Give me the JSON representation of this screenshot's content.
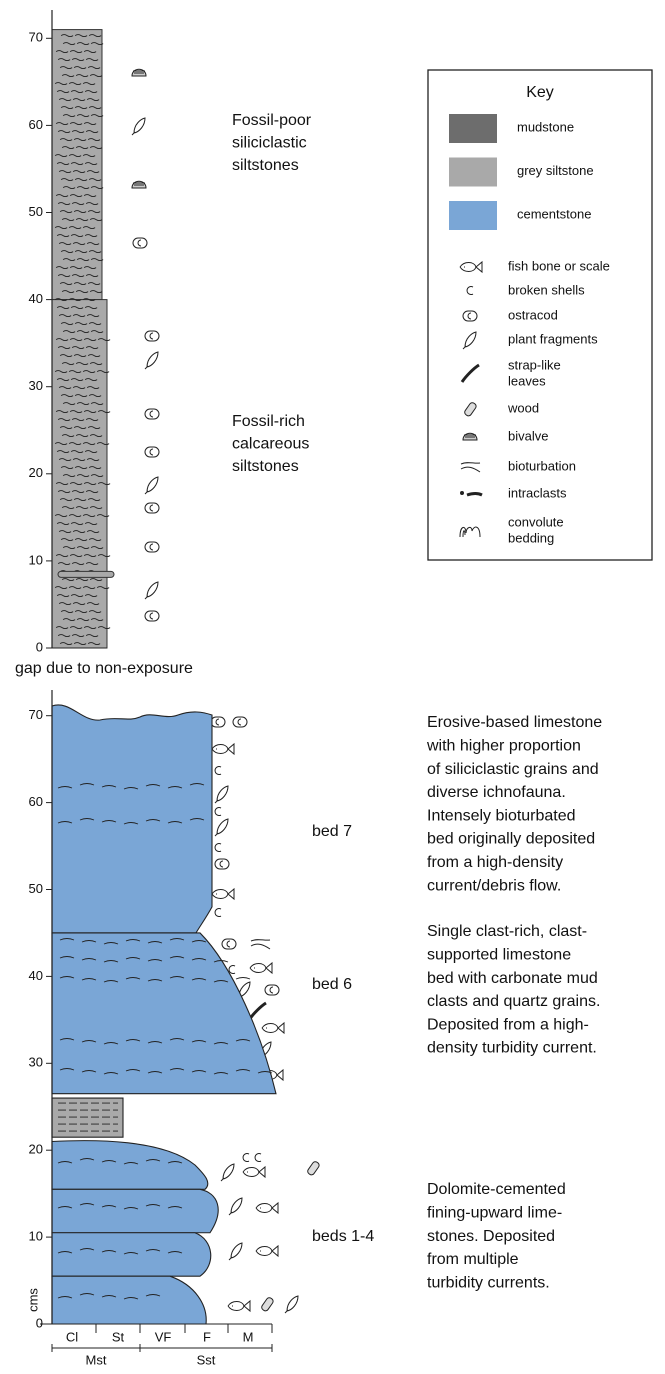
{
  "upper_log": {
    "yticks": [
      0,
      10,
      20,
      30,
      40,
      50,
      60,
      70
    ],
    "labels": [
      [
        "Fossil-poor",
        "siliciclastic",
        "siltstones"
      ],
      [
        "Fossil-rich",
        "calcareous",
        "siltstones"
      ]
    ]
  },
  "gap_label": "gap due to non-exposure",
  "lower_log": {
    "yticks": [
      0,
      10,
      20,
      30,
      40,
      50,
      60,
      70
    ],
    "y_label": "cms",
    "grain_sizes": [
      "Cl",
      "St",
      "VF",
      "F",
      "M"
    ],
    "groups": [
      "Mst",
      "Sst"
    ],
    "beds": [
      {
        "name": "bed 7",
        "description": [
          "Erosive-based limestone",
          "with higher proportion",
          "of siliciclastic grains and",
          "diverse ichnofauna.",
          "Intensely bioturbated",
          "bed originally deposited",
          "from a high-density",
          "current/debris flow."
        ]
      },
      {
        "name": "bed 6",
        "description": [
          "Single clast-rich, clast-",
          "supported limestone",
          "bed with carbonate mud",
          "clasts and quartz grains.",
          "Deposited from a high-",
          "density turbidity current."
        ]
      },
      {
        "name": "beds 1-4",
        "description": [
          "Dolomite-cemented",
          "fining-upward lime-",
          "stones. Deposited",
          "from multiple",
          "turbidity currents."
        ]
      }
    ]
  },
  "key": {
    "title": "Key",
    "lithologies": [
      "mudstone",
      "grey siltstone",
      "cementstone"
    ],
    "symbols": [
      [
        "fish bone or scale"
      ],
      [
        "broken shells"
      ],
      [
        "ostracod"
      ],
      [
        "plant fragments"
      ],
      [
        "strap-like",
        "leaves"
      ],
      [
        "wood"
      ],
      [
        "bivalve"
      ],
      [
        "bioturbation"
      ],
      [
        "intraclasts"
      ],
      [
        "convolute",
        "bedding"
      ]
    ]
  }
}
